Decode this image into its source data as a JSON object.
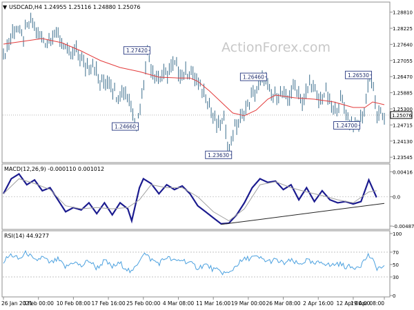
{
  "chart_data": [
    {
      "type": "line",
      "panel": "price",
      "header": "USDCAD,H4  1.24955 1.25116 1.24880 1.25076",
      "header_arrow": "▼",
      "watermark": "ActionForex.com",
      "ylim": [
        1.234,
        1.2905
      ],
      "y_ticks": [
        "1.28810",
        "1.28225",
        "1.27640",
        "1.27055",
        "1.26470",
        "1.25885",
        "1.25300",
        "1.24715",
        "1.24130",
        "1.23545"
      ],
      "current_price": "1.25076",
      "grid": false,
      "series": [
        {
          "kind": "ohlc-bars",
          "color": "#3a6d8c",
          "x_range": [
            0,
            196
          ],
          "path": [
            [
              0,
              1.272
            ],
            [
              6,
              1.283
            ],
            [
              10,
              1.279
            ],
            [
              14,
              1.2855
            ],
            [
              18,
              1.28
            ],
            [
              22,
              1.277
            ],
            [
              26,
              1.281
            ],
            [
              30,
              1.278
            ],
            [
              34,
              1.272
            ],
            [
              38,
              1.274
            ],
            [
              42,
              1.268
            ],
            [
              46,
              1.27
            ],
            [
              50,
              1.262
            ],
            [
              54,
              1.264
            ],
            [
              58,
              1.258
            ],
            [
              62,
              1.26
            ],
            [
              66,
              1.254
            ],
            [
              68,
              1.2466
            ],
            [
              70,
              1.252
            ],
            [
              72,
              1.262
            ],
            [
              74,
              1.2742
            ],
            [
              76,
              1.268
            ],
            [
              80,
              1.264
            ],
            [
              84,
              1.266
            ],
            [
              88,
              1.269
            ],
            [
              92,
              1.265
            ],
            [
              96,
              1.267
            ],
            [
              100,
              1.262
            ],
            [
              104,
              1.258
            ],
            [
              106,
              1.255
            ],
            [
              108,
              1.2495
            ],
            [
              110,
              1.247
            ],
            [
              114,
              1.2485
            ],
            [
              116,
              1.2363
            ],
            [
              118,
              1.245
            ],
            [
              122,
              1.249
            ],
            [
              126,
              1.255
            ],
            [
              130,
              1.26
            ],
            [
              134,
              1.2646
            ],
            [
              138,
              1.257
            ],
            [
              142,
              1.259
            ],
            [
              146,
              1.256
            ],
            [
              150,
              1.262
            ],
            [
              154,
              1.255
            ],
            [
              158,
              1.263
            ],
            [
              162,
              1.256
            ],
            [
              166,
              1.259
            ],
            [
              170,
              1.251
            ],
            [
              174,
              1.257
            ],
            [
              178,
              1.248
            ],
            [
              182,
              1.247
            ],
            [
              186,
              1.252
            ],
            [
              188,
              1.2653
            ],
            [
              190,
              1.263
            ],
            [
              192,
              1.25
            ],
            [
              196,
              1.2508
            ]
          ]
        },
        {
          "kind": "moving-average",
          "color": "#e33a3a",
          "path": [
            [
              0,
              1.2765
            ],
            [
              20,
              1.2785
            ],
            [
              30,
              1.277
            ],
            [
              40,
              1.274
            ],
            [
              50,
              1.2705
            ],
            [
              60,
              1.268
            ],
            [
              70,
              1.2665
            ],
            [
              80,
              1.2645
            ],
            [
              90,
              1.2642
            ],
            [
              96,
              1.2642
            ],
            [
              100,
              1.263
            ],
            [
              106,
              1.2595
            ],
            [
              112,
              1.2555
            ],
            [
              118,
              1.2515
            ],
            [
              124,
              1.2505
            ],
            [
              130,
              1.2525
            ],
            [
              136,
              1.2565
            ],
            [
              140,
              1.258
            ],
            [
              150,
              1.257
            ],
            [
              160,
              1.2565
            ],
            [
              170,
              1.2555
            ],
            [
              180,
              1.2535
            ],
            [
              186,
              1.2535
            ],
            [
              190,
              1.2555
            ],
            [
              196,
              1.2545
            ]
          ]
        }
      ],
      "annotations": [
        {
          "label": "1.27420",
          "x": 74,
          "y": 1.2742
        },
        {
          "label": "1.24660",
          "x": 68,
          "y": 1.2466
        },
        {
          "label": "1.23630",
          "x": 116,
          "y": 1.2363
        },
        {
          "label": "1.26460",
          "x": 134,
          "y": 1.2646
        },
        {
          "label": "1.26530",
          "x": 188,
          "y": 1.2653
        },
        {
          "label": "1.24700",
          "x": 182,
          "y": 1.247
        }
      ]
    },
    {
      "type": "line",
      "panel": "macd",
      "header": "MACD(12,26,9) -0.000110 0.001012",
      "ylim": [
        -0.0052,
        0.005
      ],
      "y_ticks": [
        "0.00416",
        "0.0",
        "-0.004871"
      ],
      "series": [
        {
          "kind": "macd-line",
          "color": "#1b1b8f",
          "path": [
            [
              0,
              0.0005
            ],
            [
              4,
              0.003
            ],
            [
              8,
              0.0038
            ],
            [
              12,
              0.002
            ],
            [
              16,
              0.0028
            ],
            [
              20,
              0.001
            ],
            [
              24,
              0.0015
            ],
            [
              28,
              -0.0005
            ],
            [
              32,
              -0.0025
            ],
            [
              36,
              -0.0018
            ],
            [
              40,
              -0.0022
            ],
            [
              44,
              -0.001
            ],
            [
              48,
              -0.0028
            ],
            [
              52,
              -0.001
            ],
            [
              56,
              -0.003
            ],
            [
              60,
              -0.001
            ],
            [
              64,
              -0.002
            ],
            [
              66,
              -0.004
            ],
            [
              70,
              0.0015
            ],
            [
              72,
              0.003
            ],
            [
              76,
              0.0022
            ],
            [
              80,
              0.0005
            ],
            [
              84,
              0.002
            ],
            [
              88,
              0.0012
            ],
            [
              92,
              0.0018
            ],
            [
              96,
              0.0005
            ],
            [
              100,
              -0.0015
            ],
            [
              104,
              -0.0025
            ],
            [
              108,
              -0.0035
            ],
            [
              112,
              -0.0045
            ],
            [
              116,
              -0.0044
            ],
            [
              120,
              -0.003
            ],
            [
              124,
              -0.001
            ],
            [
              128,
              0.0015
            ],
            [
              132,
              0.003
            ],
            [
              136,
              0.0024
            ],
            [
              140,
              0.0026
            ],
            [
              144,
              0.0012
            ],
            [
              148,
              0.002
            ],
            [
              152,
              -0.0005
            ],
            [
              156,
              0.0015
            ],
            [
              160,
              -0.0008
            ],
            [
              164,
              0.001
            ],
            [
              168,
              -0.0005
            ],
            [
              172,
              -0.001
            ],
            [
              176,
              -0.0008
            ],
            [
              180,
              -0.0012
            ],
            [
              184,
              -0.0008
            ],
            [
              188,
              0.0028
            ],
            [
              192,
              -0.0001
            ]
          ]
        },
        {
          "kind": "signal-line",
          "color": "#a0a0a0",
          "path": [
            [
              0,
              0.0005
            ],
            [
              8,
              0.003
            ],
            [
              16,
              0.0022
            ],
            [
              24,
              0.0012
            ],
            [
              32,
              -0.0015
            ],
            [
              40,
              -0.002
            ],
            [
              48,
              -0.0018
            ],
            [
              56,
              -0.002
            ],
            [
              64,
              -0.0018
            ],
            [
              70,
              -0.0005
            ],
            [
              76,
              0.002
            ],
            [
              84,
              0.0015
            ],
            [
              92,
              0.0015
            ],
            [
              100,
              0.0
            ],
            [
              108,
              -0.0025
            ],
            [
              116,
              -0.004
            ],
            [
              124,
              -0.002
            ],
            [
              132,
              0.002
            ],
            [
              140,
              0.0025
            ],
            [
              148,
              0.0015
            ],
            [
              156,
              0.0008
            ],
            [
              164,
              0.0002
            ],
            [
              172,
              -0.0005
            ],
            [
              180,
              -0.001
            ],
            [
              188,
              0.0008
            ],
            [
              192,
              0.001
            ]
          ]
        },
        {
          "kind": "trendline",
          "color": "#222222",
          "path": [
            [
              112,
              -0.0046
            ],
            [
              196,
              -0.0011
            ]
          ]
        }
      ]
    },
    {
      "type": "line",
      "panel": "rsi",
      "header": "RSI(14) 44.9277",
      "ylim": [
        0,
        100
      ],
      "y_ticks": [
        "100",
        "70",
        "50",
        "30",
        "0"
      ],
      "levels": [
        70,
        30
      ],
      "series": [
        {
          "kind": "rsi",
          "color": "#4aa0df",
          "path": [
            [
              0,
              55
            ],
            [
              4,
              66
            ],
            [
              8,
              58
            ],
            [
              12,
              70
            ],
            [
              16,
              55
            ],
            [
              20,
              62
            ],
            [
              24,
              52
            ],
            [
              28,
              58
            ],
            [
              32,
              45
            ],
            [
              36,
              55
            ],
            [
              40,
              47
            ],
            [
              44,
              57
            ],
            [
              48,
              44
            ],
            [
              52,
              56
            ],
            [
              56,
              46
            ],
            [
              60,
              52
            ],
            [
              64,
              42
            ],
            [
              66,
              36
            ],
            [
              70,
              58
            ],
            [
              72,
              69
            ],
            [
              76,
              58
            ],
            [
              80,
              52
            ],
            [
              84,
              62
            ],
            [
              88,
              55
            ],
            [
              92,
              58
            ],
            [
              96,
              52
            ],
            [
              100,
              45
            ],
            [
              104,
              50
            ],
            [
              108,
              42
            ],
            [
              112,
              38
            ],
            [
              116,
              35
            ],
            [
              120,
              50
            ],
            [
              124,
              58
            ],
            [
              128,
              62
            ],
            [
              132,
              60
            ],
            [
              136,
              55
            ],
            [
              140,
              57
            ],
            [
              144,
              52
            ],
            [
              148,
              56
            ],
            [
              152,
              50
            ],
            [
              156,
              57
            ],
            [
              160,
              50
            ],
            [
              164,
              55
            ],
            [
              168,
              48
            ],
            [
              172,
              52
            ],
            [
              176,
              47
            ],
            [
              180,
              45
            ],
            [
              184,
              50
            ],
            [
              188,
              66
            ],
            [
              192,
              45
            ]
          ]
        }
      ]
    }
  ],
  "x_axis": {
    "labels": [
      "26 Jan 2021",
      "3 Feb 00:00",
      "10 Feb 08:00",
      "17 Feb 16:00",
      "25 Feb 00:00",
      "4 Mar 08:00",
      "11 Mar 16:00",
      "19 Mar 00:00",
      "26 Mar 08:00",
      "2 Apr 16:00",
      "12 Apr 00:00",
      "19 Apr 08:00"
    ],
    "positions": [
      0,
      18,
      36,
      54,
      72,
      90,
      108,
      126,
      144,
      162,
      180,
      196
    ]
  }
}
